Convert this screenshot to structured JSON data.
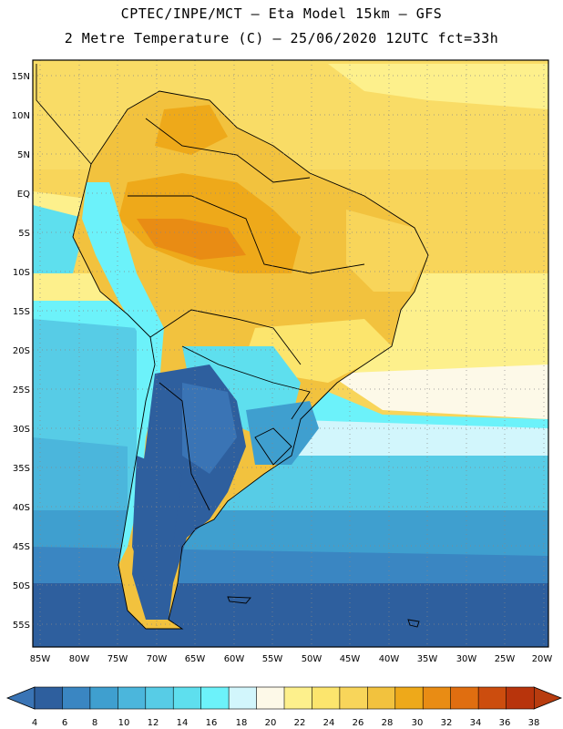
{
  "header": {
    "line1": "CPTEC/INPE/MCT –  Eta Model 15km – GFS",
    "line2": "2 Metre Temperature (C) – 25/06/2020 12UTC fct=33h"
  },
  "map": {
    "lat_labels": [
      "15N",
      "10N",
      "5N",
      "EQ",
      "5S",
      "10S",
      "15S",
      "20S",
      "25S",
      "30S",
      "35S",
      "40S",
      "45S",
      "50S",
      "55S"
    ],
    "lon_labels": [
      "85W",
      "80W",
      "75W",
      "70W",
      "65W",
      "60W",
      "55W",
      "50W",
      "45W",
      "40W",
      "35W",
      "30W",
      "25W",
      "20W"
    ],
    "grid": "dotted"
  },
  "colorbar": {
    "labels": [
      "4",
      "6",
      "8",
      "10",
      "12",
      "14",
      "16",
      "18",
      "20",
      "22",
      "24",
      "26",
      "28",
      "30",
      "32",
      "34",
      "36",
      "38"
    ],
    "low_color": "#3a74b5",
    "high_color": "#b83c0f",
    "colors": [
      "#2e5f9e",
      "#3a86c2",
      "#3f9fcf",
      "#4bb6dc",
      "#57cce6",
      "#5edfee",
      "#6cf2fa",
      "#d2f6fc",
      "#fdf9e8",
      "#fdf08c",
      "#fce56d",
      "#f8d55a",
      "#f2c23e",
      "#eea91a",
      "#e98c14",
      "#e06e10",
      "#cc4d0e",
      "#b8340c"
    ]
  }
}
